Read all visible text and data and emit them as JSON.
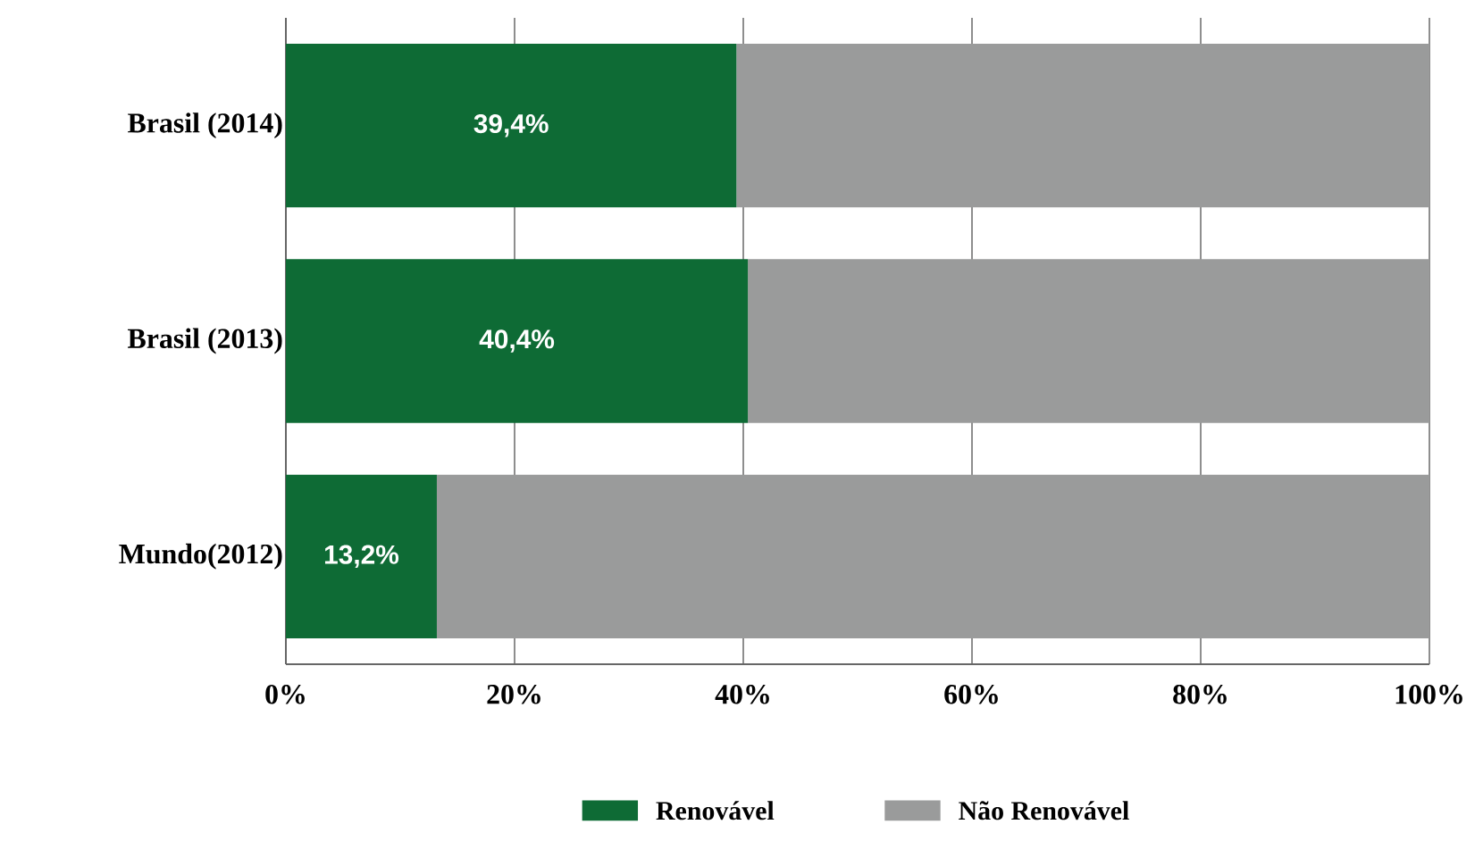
{
  "chart_data": {
    "type": "bar",
    "orientation": "horizontal",
    "stacked": true,
    "categories": [
      "Brasil (2014)",
      "Brasil (2013)",
      "Mundo(2012)"
    ],
    "series": [
      {
        "name": "Renovável",
        "color": "#0e6b35",
        "values": [
          39.4,
          40.4,
          13.2
        ],
        "value_labels": [
          "39,4%",
          "40,4%",
          "13,2%"
        ]
      },
      {
        "name": "Não Renovável",
        "color": "#9a9b9b",
        "values": [
          60.6,
          59.6,
          86.8
        ]
      }
    ],
    "xlim": [
      0,
      100
    ],
    "xticks": [
      {
        "value": 0,
        "label": "0%"
      },
      {
        "value": 20,
        "label": "20%"
      },
      {
        "value": 40,
        "label": "40%"
      },
      {
        "value": 60,
        "label": "60%"
      },
      {
        "value": 80,
        "label": "80%"
      },
      {
        "value": 100,
        "label": "100%"
      }
    ],
    "grid": "x",
    "legend": "bottom"
  }
}
